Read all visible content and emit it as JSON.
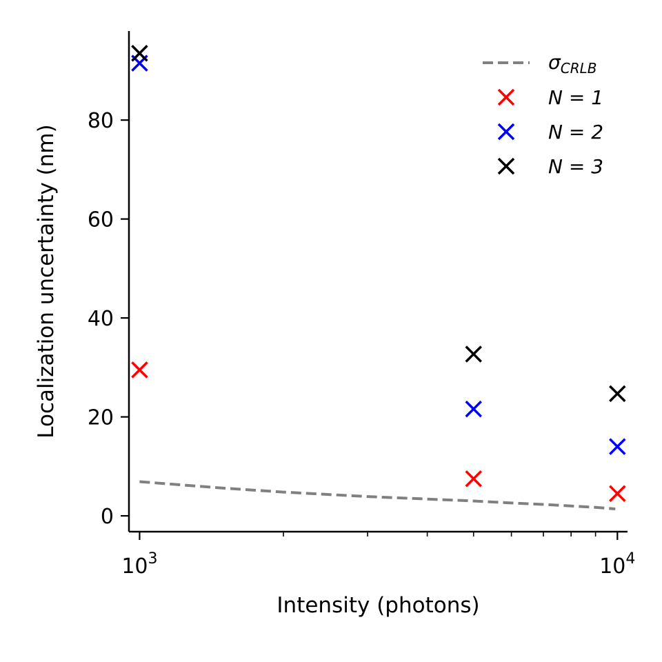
{
  "chart_data": {
    "type": "scatter",
    "xscale": "log",
    "xlim": [
      950,
      10500
    ],
    "ylim": [
      -3.2,
      98
    ],
    "grid": false,
    "xlabel": "Intensity (photons)",
    "ylabel": "Localization uncertainty (nm)",
    "x_major_ticks": [
      {
        "value": 1000,
        "base": "10",
        "exp": "3"
      },
      {
        "value": 10000,
        "base": "10",
        "exp": "4"
      }
    ],
    "x_minor_ticks": [
      2000,
      3000,
      4000,
      5000,
      6000,
      7000,
      8000,
      9000
    ],
    "y_ticks": [
      {
        "value": 0,
        "label": "0"
      },
      {
        "value": 20,
        "label": "20"
      },
      {
        "value": 40,
        "label": "40"
      },
      {
        "value": 60,
        "label": "60"
      },
      {
        "value": 80,
        "label": "80"
      }
    ],
    "legend_position": "top-right",
    "crlb": {
      "name": "σ",
      "subscript": "CRLB",
      "color": "#808080",
      "style": "dashed",
      "x": [
        1000,
        1500,
        2000,
        3000,
        4000,
        5000,
        6000,
        7000,
        8000,
        9000,
        9900
      ],
      "y": [
        6.9,
        5.6,
        4.8,
        3.9,
        3.4,
        3.0,
        2.6,
        2.3,
        2.0,
        1.7,
        1.4
      ]
    },
    "series": [
      {
        "name": "N = 1",
        "color": "#ff0000",
        "marker": "x",
        "x": [
          1000,
          5000,
          10000
        ],
        "y": [
          29.5,
          7.5,
          4.5
        ]
      },
      {
        "name": "N = 2",
        "color": "#0000ff",
        "marker": "x",
        "x": [
          1000,
          5000,
          10000
        ],
        "y": [
          91.5,
          21.6,
          14.0
        ]
      },
      {
        "name": "N = 3",
        "color": "#000000",
        "marker": "x",
        "x": [
          1000,
          5000,
          10000
        ],
        "y": [
          93.5,
          32.7,
          24.7
        ]
      }
    ]
  }
}
